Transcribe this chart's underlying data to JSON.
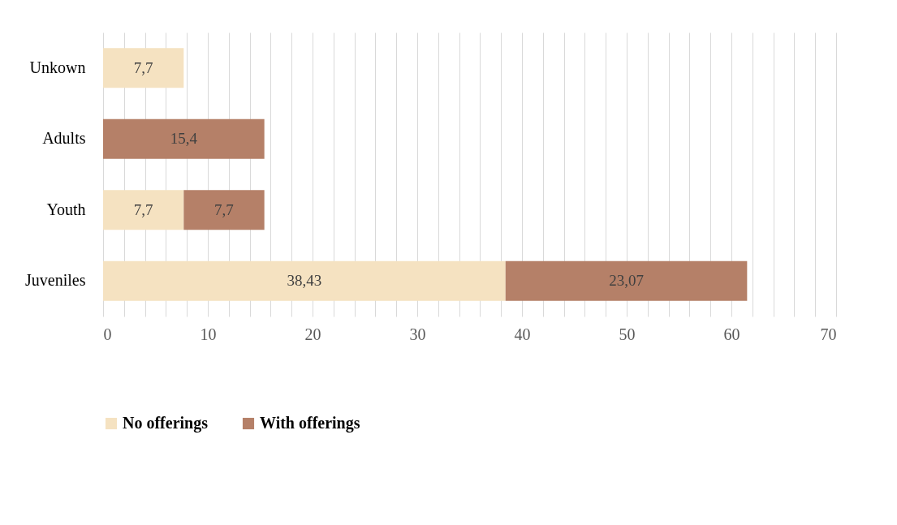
{
  "chart_data": {
    "type": "bar",
    "orientation": "horizontal",
    "stacked": true,
    "categories": [
      "Unkown",
      "Adults",
      "Youth",
      "Juveniles"
    ],
    "series": [
      {
        "name": "No offerings",
        "color": "#f5e2c1",
        "values": [
          7.7,
          null,
          7.7,
          38.43
        ],
        "value_labels": [
          "7,7",
          null,
          "7,7",
          "38,43"
        ]
      },
      {
        "name": "With offerings",
        "color": "#b58068",
        "values": [
          null,
          15.4,
          7.7,
          23.07
        ],
        "value_labels": [
          null,
          "15,4",
          "7,7",
          "23,07"
        ]
      }
    ],
    "xlim": [
      0,
      70
    ],
    "xticks": [
      0,
      {
        "value": 2,
        "label": null
      },
      {
        "value": 4,
        "label": null
      },
      {
        "value": 6,
        "label": null
      },
      {
        "value": 8,
        "label": null
      },
      10,
      {
        "value": 12,
        "label": null
      },
      {
        "value": 14,
        "label": null
      },
      {
        "value": 16,
        "label": null
      },
      {
        "value": 18,
        "label": null
      },
      20,
      {
        "value": 22,
        "label": null
      },
      {
        "value": 24,
        "label": null
      },
      {
        "value": 26,
        "label": null
      },
      {
        "value": 28,
        "label": null
      },
      30,
      {
        "value": 32,
        "label": null
      },
      {
        "value": 34,
        "label": null
      },
      {
        "value": 36,
        "label": null
      },
      {
        "value": 38,
        "label": null
      },
      40,
      {
        "value": 42,
        "label": null
      },
      {
        "value": 44,
        "label": null
      },
      {
        "value": 46,
        "label": null
      },
      {
        "value": 48,
        "label": null
      },
      50,
      {
        "value": 52,
        "label": null
      },
      {
        "value": 54,
        "label": null
      },
      {
        "value": 56,
        "label": null
      },
      {
        "value": 58,
        "label": null
      },
      60,
      {
        "value": 62,
        "label": null
      },
      {
        "value": 64,
        "label": null
      },
      {
        "value": 66,
        "label": null
      },
      {
        "value": 68,
        "label": null
      },
      70
    ],
    "grid": "x",
    "legend": "bottom"
  }
}
